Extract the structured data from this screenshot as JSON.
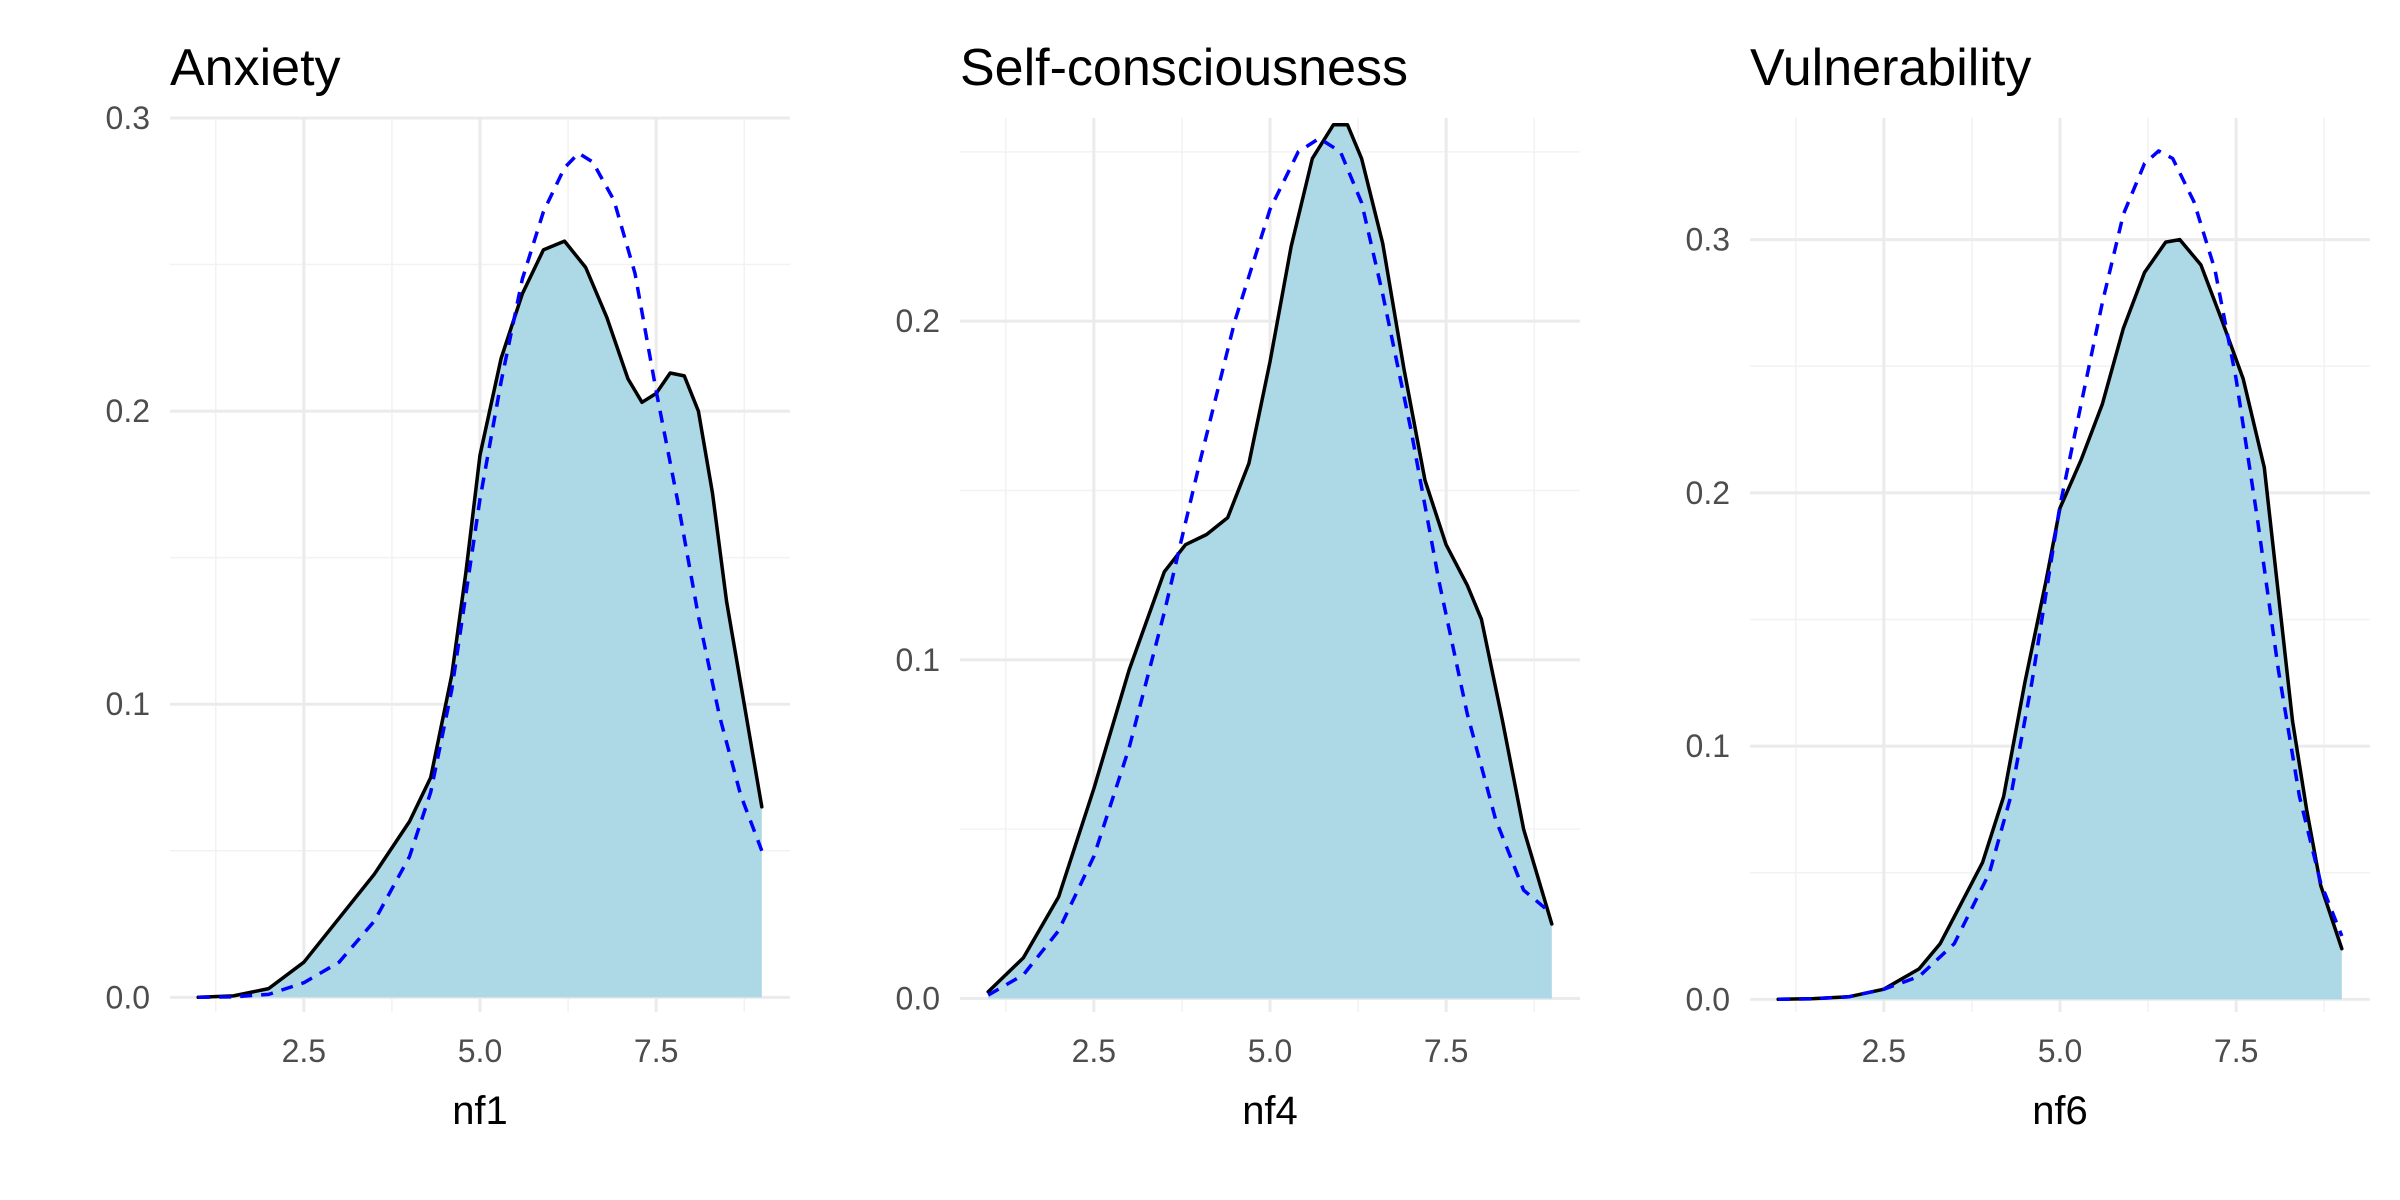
{
  "chart_data": [
    {
      "type": "area",
      "title": "Anxiety",
      "xlabel": "nf1",
      "ylabel": "",
      "xlim": [
        0.6,
        9.4
      ],
      "ylim": [
        -0.005,
        0.3
      ],
      "x_ticks": [
        2.5,
        5.0,
        7.5
      ],
      "x_tick_labels": [
        "2.5",
        "5.0",
        "7.5"
      ],
      "y_ticks": [
        0.0,
        0.1,
        0.2,
        0.3
      ],
      "y_tick_labels": [
        "0.0",
        "0.1",
        "0.2",
        "0.3"
      ],
      "grid": true,
      "fill_color": "#add8e6",
      "series": [
        {
          "style": "solid",
          "color": "#000000",
          "points": [
            [
              1.0,
              0.0
            ],
            [
              1.5,
              0.0005
            ],
            [
              2.0,
              0.003
            ],
            [
              2.5,
              0.012
            ],
            [
              3.0,
              0.027
            ],
            [
              3.5,
              0.042
            ],
            [
              4.0,
              0.06
            ],
            [
              4.3,
              0.075
            ],
            [
              4.6,
              0.11
            ],
            [
              4.8,
              0.145
            ],
            [
              5.0,
              0.185
            ],
            [
              5.3,
              0.218
            ],
            [
              5.6,
              0.24
            ],
            [
              5.9,
              0.255
            ],
            [
              6.2,
              0.258
            ],
            [
              6.5,
              0.249
            ],
            [
              6.8,
              0.232
            ],
            [
              7.1,
              0.211
            ],
            [
              7.3,
              0.203
            ],
            [
              7.5,
              0.206
            ],
            [
              7.7,
              0.213
            ],
            [
              7.9,
              0.212
            ],
            [
              8.1,
              0.2
            ],
            [
              8.3,
              0.172
            ],
            [
              8.5,
              0.135
            ],
            [
              8.7,
              0.107
            ],
            [
              9.0,
              0.065
            ]
          ]
        },
        {
          "style": "dashed",
          "color": "#0000ff",
          "points": [
            [
              1.0,
              0.0
            ],
            [
              1.5,
              0.0002
            ],
            [
              2.0,
              0.001
            ],
            [
              2.5,
              0.005
            ],
            [
              3.0,
              0.012
            ],
            [
              3.5,
              0.026
            ],
            [
              4.0,
              0.048
            ],
            [
              4.3,
              0.07
            ],
            [
              4.6,
              0.105
            ],
            [
              5.0,
              0.17
            ],
            [
              5.3,
              0.21
            ],
            [
              5.6,
              0.245
            ],
            [
              5.9,
              0.268
            ],
            [
              6.2,
              0.283
            ],
            [
              6.4,
              0.288
            ],
            [
              6.6,
              0.285
            ],
            [
              6.9,
              0.272
            ],
            [
              7.2,
              0.247
            ],
            [
              7.5,
              0.207
            ],
            [
              7.8,
              0.17
            ],
            [
              8.1,
              0.13
            ],
            [
              8.4,
              0.096
            ],
            [
              8.7,
              0.069
            ],
            [
              9.0,
              0.05
            ]
          ]
        }
      ]
    },
    {
      "type": "area",
      "title": "Self-consciousness",
      "xlabel": "nf4",
      "ylabel": "",
      "xlim": [
        0.6,
        9.4
      ],
      "ylim": [
        -0.004,
        0.26
      ],
      "x_ticks": [
        2.5,
        5.0,
        7.5
      ],
      "x_tick_labels": [
        "2.5",
        "5.0",
        "7.5"
      ],
      "y_ticks": [
        0.0,
        0.1,
        0.2
      ],
      "y_tick_labels": [
        "0.0",
        "0.1",
        "0.2"
      ],
      "grid": true,
      "fill_color": "#add8e6",
      "series": [
        {
          "style": "solid",
          "color": "#000000",
          "points": [
            [
              1.0,
              0.002
            ],
            [
              1.5,
              0.012
            ],
            [
              2.0,
              0.03
            ],
            [
              2.5,
              0.062
            ],
            [
              3.0,
              0.097
            ],
            [
              3.5,
              0.126
            ],
            [
              3.8,
              0.134
            ],
            [
              4.1,
              0.137
            ],
            [
              4.4,
              0.142
            ],
            [
              4.7,
              0.158
            ],
            [
              5.0,
              0.188
            ],
            [
              5.3,
              0.222
            ],
            [
              5.6,
              0.248
            ],
            [
              5.9,
              0.258
            ],
            [
              6.1,
              0.258
            ],
            [
              6.3,
              0.248
            ],
            [
              6.6,
              0.223
            ],
            [
              6.9,
              0.186
            ],
            [
              7.2,
              0.153
            ],
            [
              7.5,
              0.134
            ],
            [
              7.8,
              0.122
            ],
            [
              8.0,
              0.112
            ],
            [
              8.3,
              0.082
            ],
            [
              8.6,
              0.05
            ],
            [
              9.0,
              0.022
            ]
          ]
        },
        {
          "style": "dashed",
          "color": "#0000ff",
          "points": [
            [
              1.0,
              0.001
            ],
            [
              1.5,
              0.007
            ],
            [
              2.0,
              0.02
            ],
            [
              2.5,
              0.042
            ],
            [
              3.0,
              0.074
            ],
            [
              3.5,
              0.114
            ],
            [
              4.0,
              0.158
            ],
            [
              4.5,
              0.2
            ],
            [
              5.0,
              0.233
            ],
            [
              5.4,
              0.25
            ],
            [
              5.7,
              0.254
            ],
            [
              6.0,
              0.25
            ],
            [
              6.3,
              0.235
            ],
            [
              6.6,
              0.208
            ],
            [
              7.0,
              0.168
            ],
            [
              7.4,
              0.123
            ],
            [
              7.8,
              0.084
            ],
            [
              8.2,
              0.053
            ],
            [
              8.6,
              0.032
            ],
            [
              9.0,
              0.025
            ]
          ]
        }
      ]
    },
    {
      "type": "area",
      "title": "Vulnerability",
      "xlabel": "nf6",
      "ylabel": "",
      "xlim": [
        0.6,
        9.4
      ],
      "ylim": [
        -0.005,
        0.348
      ],
      "x_ticks": [
        2.5,
        5.0,
        7.5
      ],
      "x_tick_labels": [
        "2.5",
        "5.0",
        "7.5"
      ],
      "y_ticks": [
        0.0,
        0.1,
        0.2,
        0.3
      ],
      "y_tick_labels": [
        "0.0",
        "0.1",
        "0.2",
        "0.3"
      ],
      "grid": true,
      "fill_color": "#add8e6",
      "series": [
        {
          "style": "solid",
          "color": "#000000",
          "points": [
            [
              1.0,
              0.0
            ],
            [
              1.5,
              0.0003
            ],
            [
              2.0,
              0.001
            ],
            [
              2.5,
              0.004
            ],
            [
              3.0,
              0.012
            ],
            [
              3.3,
              0.022
            ],
            [
              3.6,
              0.038
            ],
            [
              3.9,
              0.054
            ],
            [
              4.2,
              0.08
            ],
            [
              4.5,
              0.125
            ],
            [
              4.8,
              0.165
            ],
            [
              5.0,
              0.194
            ],
            [
              5.3,
              0.213
            ],
            [
              5.6,
              0.235
            ],
            [
              5.9,
              0.265
            ],
            [
              6.2,
              0.287
            ],
            [
              6.5,
              0.299
            ],
            [
              6.7,
              0.3
            ],
            [
              7.0,
              0.29
            ],
            [
              7.3,
              0.268
            ],
            [
              7.6,
              0.245
            ],
            [
              7.9,
              0.21
            ],
            [
              8.1,
              0.16
            ],
            [
              8.3,
              0.11
            ],
            [
              8.5,
              0.075
            ],
            [
              8.7,
              0.045
            ],
            [
              9.0,
              0.02
            ]
          ]
        },
        {
          "style": "dashed",
          "color": "#0000ff",
          "points": [
            [
              1.0,
              0.0
            ],
            [
              1.5,
              0.0002
            ],
            [
              2.0,
              0.001
            ],
            [
              2.5,
              0.004
            ],
            [
              3.0,
              0.009
            ],
            [
              3.5,
              0.022
            ],
            [
              4.0,
              0.05
            ],
            [
              4.3,
              0.08
            ],
            [
              4.6,
              0.125
            ],
            [
              5.0,
              0.195
            ],
            [
              5.3,
              0.235
            ],
            [
              5.6,
              0.275
            ],
            [
              5.9,
              0.31
            ],
            [
              6.2,
              0.33
            ],
            [
              6.4,
              0.335
            ],
            [
              6.6,
              0.332
            ],
            [
              6.9,
              0.315
            ],
            [
              7.2,
              0.288
            ],
            [
              7.5,
              0.245
            ],
            [
              7.8,
              0.19
            ],
            [
              8.1,
              0.13
            ],
            [
              8.4,
              0.08
            ],
            [
              8.7,
              0.046
            ],
            [
              9.0,
              0.025
            ]
          ]
        }
      ]
    }
  ]
}
